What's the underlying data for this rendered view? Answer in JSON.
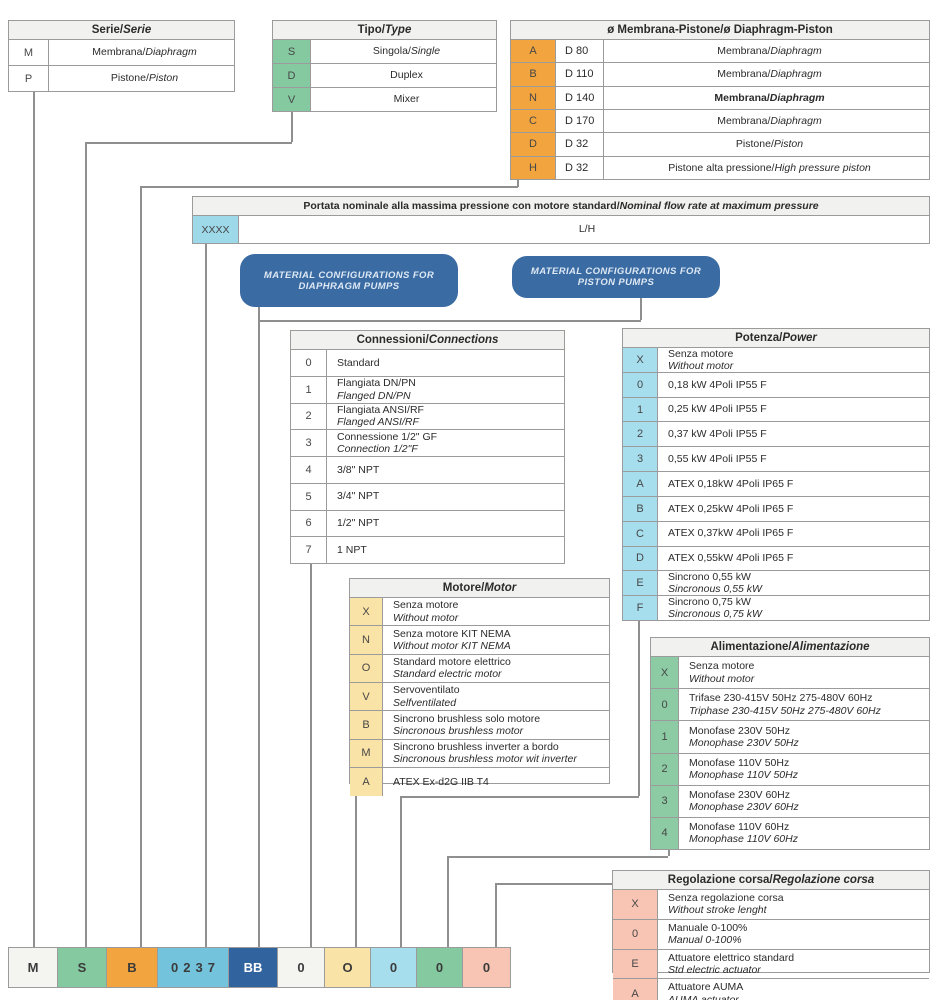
{
  "palette": {
    "orange": "#f2a43f",
    "green": "#85c9a1",
    "lightblue": "#a6deee",
    "medblue": "#74c3dd",
    "darkblue": "#31639f",
    "cream": "#fae3a7",
    "salmon": "#f8c5b4",
    "neutral": "#f4f4f1",
    "header_bg": "#f1f1ef",
    "border": "#9b9b9b",
    "line": "#8f8f8f"
  },
  "tables": {
    "serie": {
      "title_it": "Serie/",
      "title_en": "Serie",
      "rows": [
        {
          "code": "M",
          "it": "Membrana/ ",
          "en": "Diaphragm"
        },
        {
          "code": "P",
          "it": "Pistone/ ",
          "en": "Piston"
        }
      ]
    },
    "tipo": {
      "title_it": "Tipo/",
      "title_en": "Type",
      "rows": [
        {
          "code": "S",
          "it": "Singola/",
          "en": "Single"
        },
        {
          "code": "D",
          "it": "Duplex"
        },
        {
          "code": "V",
          "it": "Mixer"
        }
      ]
    },
    "membrana": {
      "title_it": "ø Membrana-Pistone/",
      "title_en": "ø Diaphragm-Piston",
      "rows": [
        {
          "code": "A",
          "size": "D 80",
          "it": "Membrana/",
          "en": "Diaphragm"
        },
        {
          "code": "B",
          "size": "D 110",
          "it": "Membrana/",
          "en": "Diaphragm"
        },
        {
          "code": "N",
          "size": "D 140",
          "it": "Membrana/",
          "en": "Diaphragm",
          "bold": true
        },
        {
          "code": "C",
          "size": "D 170",
          "it": "Membrana/",
          "en": "Diaphragm"
        },
        {
          "code": "D",
          "size": "D 32",
          "it": "Pistone/",
          "en": "Piston"
        },
        {
          "code": "H",
          "size": "D 32",
          "it": "Pistone alta pressione/",
          "en": "High pressure piston"
        }
      ]
    },
    "portata": {
      "title_it": "Portata nominale alla massima pressione con motore standard/ ",
      "title_en": "Nominal flow rate at maximum pressure",
      "code": "XXXX",
      "unit": "L/H"
    },
    "connessioni": {
      "title_it": "Connessioni/",
      "title_en": "Connections",
      "rows": [
        {
          "code": "0",
          "it": "Standard"
        },
        {
          "code": "1",
          "it": "Flangiata DN/PN",
          "en": "Flanged DN/PN"
        },
        {
          "code": "2",
          "it": "Flangiata ANSI/RF",
          "en": "Flanged ANSI/RF"
        },
        {
          "code": "3",
          "it": "Connessione 1/2\" GF",
          "en": "Connection 1/2\"F"
        },
        {
          "code": "4",
          "it": "3/8\" NPT"
        },
        {
          "code": "5",
          "it": "3/4\" NPT"
        },
        {
          "code": "6",
          "it": "1/2\" NPT"
        },
        {
          "code": "7",
          "it": "1 NPT"
        }
      ]
    },
    "potenza": {
      "title_it": "Potenza/",
      "title_en": "Power",
      "rows": [
        {
          "code": "X",
          "it": "Senza motore",
          "en": "Without motor"
        },
        {
          "code": "0",
          "it": "0,18 kW 4Poli IP55 F"
        },
        {
          "code": "1",
          "it": "0,25 kW 4Poli IP55 F"
        },
        {
          "code": "2",
          "it": "0,37 kW 4Poli IP55 F"
        },
        {
          "code": "3",
          "it": "0,55 kW 4Poli IP55 F"
        },
        {
          "code": "A",
          "it": "ATEX 0,18kW 4Poli IP65 F"
        },
        {
          "code": "B",
          "it": "ATEX 0,25kW 4Poli IP65 F"
        },
        {
          "code": "C",
          "it": "ATEX 0,37kW 4Poli IP65 F"
        },
        {
          "code": "D",
          "it": "ATEX 0,55kW 4Poli IP65 F"
        },
        {
          "code": "E",
          "it": "Sincrono 0,55 kW",
          "en": "Sincronous 0,55 kW"
        },
        {
          "code": "F",
          "it": "Sincrono 0,75 kW",
          "en": "Sincronous 0,75 kW"
        }
      ]
    },
    "motore": {
      "title_it": "Motore/",
      "title_en": "Motor",
      "rows": [
        {
          "code": "X",
          "it": "Senza motore",
          "en": "Without motor"
        },
        {
          "code": "N",
          "it": "Senza motore KIT NEMA",
          "en": "Without motor KIT NEMA"
        },
        {
          "code": "O",
          "it": "Standard motore elettrico",
          "en": "Standard electric motor"
        },
        {
          "code": "V",
          "it": "Servoventilato",
          "en": "Selfventilated"
        },
        {
          "code": "B",
          "it": "Sincrono brushless solo motore",
          "en": "Sincronous brushless motor"
        },
        {
          "code": "M",
          "it": "Sincrono brushless inverter a bordo",
          "en": "Sincronous brushless motor wit inverter"
        },
        {
          "code": "A",
          "it": "ATEX Ex-d2G IIB T4"
        }
      ]
    },
    "alimentazione": {
      "title_it": "Alimentazione/",
      "title_en": "Alimentazione",
      "rows": [
        {
          "code": "X",
          "it": "Senza motore",
          "en": "Without motor"
        },
        {
          "code": "0",
          "it": "Trifase 230-415V 50Hz 275-480V 60Hz",
          "en": "Triphase 230-415V 50Hz 275-480V 60Hz"
        },
        {
          "code": "1",
          "it": "Monofase 230V 50Hz",
          "en": "Monophase 230V 50Hz"
        },
        {
          "code": "2",
          "it": "Monofase 110V 50Hz",
          "en": "Monophase 110V 50Hz"
        },
        {
          "code": "3",
          "it": "Monofase 230V 60Hz",
          "en": "Monophase 230V 60Hz"
        },
        {
          "code": "4",
          "it": "Monofase 110V 60Hz",
          "en": "Monophase 110V 60Hz"
        }
      ]
    },
    "regolazione": {
      "title_it": "Regolazione corsa/",
      "title_en": "Regolazione corsa",
      "rows": [
        {
          "code": "X",
          "it": "Senza regolazione corsa",
          "en": "Without stroke lenght"
        },
        {
          "code": "0",
          "it": "Manuale 0-100%",
          "en": "Manual 0-100%"
        },
        {
          "code": "E",
          "it": "Attuatore elettrico standard",
          "en": "Std electric actuator"
        },
        {
          "code": "A",
          "it": "Attuatore AUMA",
          "en": "AUMA actuator"
        }
      ]
    }
  },
  "material_boxes": [
    {
      "label": "MATERIAL CONFIGURATIONS FOR DIAPHRAGM PUMPS"
    },
    {
      "label": "MATERIAL CONFIGURATIONS FOR PISTON PUMPS"
    }
  ],
  "code_row": [
    {
      "text": "M",
      "color": "neutral"
    },
    {
      "text": "S",
      "color": "green"
    },
    {
      "text": "B",
      "color": "orange"
    },
    {
      "text": "0237",
      "color": "medblue"
    },
    {
      "text": "BB",
      "color": "darkblue"
    },
    {
      "text": "0",
      "color": "neutral"
    },
    {
      "text": "O",
      "color": "cream"
    },
    {
      "text": "0",
      "color": "lightblue"
    },
    {
      "text": "0",
      "color": "green"
    },
    {
      "text": "0",
      "color": "salmon"
    }
  ]
}
